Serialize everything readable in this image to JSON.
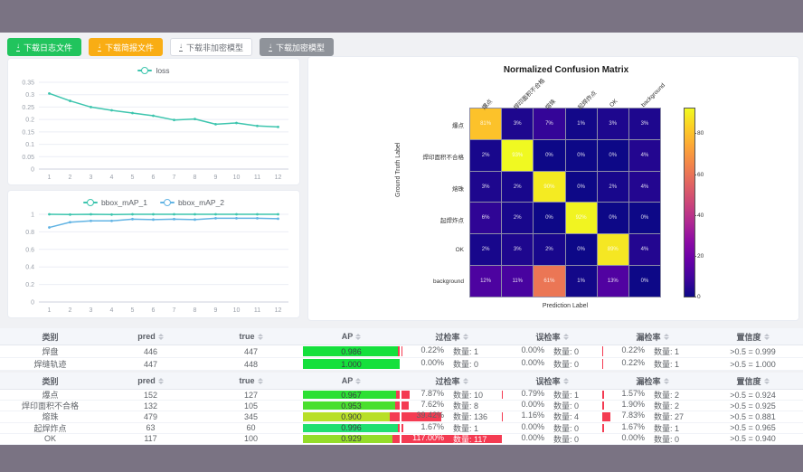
{
  "colors": {
    "frame": "#7a7383",
    "content_bg": "#f0f1f4",
    "teal_line": "#3dc5ae",
    "blue_line": "#62b4e4",
    "ap_red": "#f43b52",
    "rate_red": "#f43b52"
  },
  "toolbar": {
    "buttons": [
      {
        "id": "download-log-file",
        "label": "下载日志文件",
        "style": "green",
        "icon": "download-icon"
      },
      {
        "id": "download-report-file",
        "label": "下载简报文件",
        "style": "orange",
        "icon": "download-icon"
      },
      {
        "id": "download-plain-model",
        "label": "下载非加密模型",
        "style": "plain",
        "icon": "download-icon"
      },
      {
        "id": "download-encrypted-model",
        "label": "下载加密模型",
        "style": "gray",
        "icon": "download-icon"
      }
    ]
  },
  "chart_data": [
    {
      "type": "line",
      "title": "",
      "x": [
        1,
        2,
        3,
        4,
        5,
        6,
        7,
        8,
        9,
        10,
        11,
        12
      ],
      "series": [
        {
          "name": "loss",
          "color": "#3dc5ae",
          "values": [
            0.305,
            0.275,
            0.25,
            0.237,
            0.226,
            0.215,
            0.198,
            0.202,
            0.181,
            0.186,
            0.174,
            0.17
          ]
        }
      ],
      "ylim": [
        0,
        0.35
      ],
      "yticks": [
        0,
        0.05,
        0.1,
        0.15,
        0.2,
        0.25,
        0.3,
        0.35
      ],
      "legend_position": "top",
      "grid": true
    },
    {
      "type": "line",
      "title": "",
      "x": [
        1,
        2,
        3,
        4,
        5,
        6,
        7,
        8,
        9,
        10,
        11,
        12
      ],
      "series": [
        {
          "name": "bbox_mAP_1",
          "color": "#3dc5ae",
          "values": [
            1,
            0.997,
            1,
            0.997,
            1,
            1,
            1,
            1,
            1,
            1,
            1,
            1
          ]
        },
        {
          "name": "bbox_mAP_2",
          "color": "#62b4e4",
          "values": [
            0.85,
            0.91,
            0.925,
            0.925,
            0.945,
            0.94,
            0.945,
            0.94,
            0.955,
            0.955,
            0.955,
            0.95
          ]
        }
      ],
      "ylim": [
        0,
        1
      ],
      "yticks": [
        0,
        0.2,
        0.4,
        0.6,
        0.8,
        1
      ],
      "legend_position": "top",
      "grid": true
    },
    {
      "type": "heatmap",
      "title": "Normalized Confusion Matrix",
      "xlabel": "Prediction Label",
      "ylabel": "Ground Truth Label",
      "labels": [
        "爆点",
        "焊印面积不合格",
        "熔珠",
        "起焊炸点",
        "OK",
        "background"
      ],
      "matrix_percent": [
        [
          81,
          3,
          7,
          1,
          3,
          3
        ],
        [
          2,
          93,
          0,
          0,
          0,
          4
        ],
        [
          3,
          2,
          90,
          0,
          2,
          4
        ],
        [
          6,
          2,
          0,
          92,
          0,
          0
        ],
        [
          2,
          3,
          2,
          0,
          89,
          4
        ],
        [
          12,
          11,
          61,
          1,
          13,
          0
        ]
      ],
      "vmax": 93,
      "colorbar_ticks": [
        0,
        20,
        40,
        60,
        80
      ],
      "colormap": "plasma"
    }
  ],
  "tables": [
    {
      "headers": [
        {
          "label": "类别",
          "sortable": false
        },
        {
          "label": "pred",
          "sortable": true
        },
        {
          "label": "true",
          "sortable": true
        },
        {
          "label": "AP",
          "sortable": true
        },
        {
          "label": "过检率",
          "sortable": true
        },
        {
          "label": "误检率",
          "sortable": true
        },
        {
          "label": "漏检率",
          "sortable": true
        },
        {
          "label": "置信度",
          "sortable": true
        }
      ],
      "rows": [
        {
          "name": "焊盘",
          "pred": "446",
          "true": "447",
          "ap_label": "0.986",
          "ap": 0.986,
          "ap_color": "#15e03c",
          "rates": [
            {
              "pct": "0.22%",
              "count": "数量: 1",
              "bar": 0.22
            },
            {
              "pct": "0.00%",
              "count": "数量: 0",
              "bar": 0
            },
            {
              "pct": "0.22%",
              "count": "数量: 1",
              "bar": 0.22
            }
          ],
          "conf": ">0.5 = 0.999"
        },
        {
          "name": "焊缝轨迹",
          "pred": "447",
          "true": "448",
          "ap_label": "1.000",
          "ap": 1.0,
          "ap_color": "#15e03c",
          "rates": [
            {
              "pct": "0.00%",
              "count": "数量: 0",
              "bar": 0
            },
            {
              "pct": "0.00%",
              "count": "数量: 0",
              "bar": 0
            },
            {
              "pct": "0.22%",
              "count": "数量: 1",
              "bar": 0.22
            }
          ],
          "conf": ">0.5 = 1.000"
        }
      ]
    },
    {
      "headers": [
        {
          "label": "类别",
          "sortable": false
        },
        {
          "label": "pred",
          "sortable": true
        },
        {
          "label": "true",
          "sortable": true
        },
        {
          "label": "AP",
          "sortable": true
        },
        {
          "label": "过检率",
          "sortable": true
        },
        {
          "label": "误检率",
          "sortable": true
        },
        {
          "label": "漏检率",
          "sortable": true
        },
        {
          "label": "置信度",
          "sortable": true
        }
      ],
      "rows": [
        {
          "name": "爆点",
          "pred": "152",
          "true": "127",
          "ap_label": "0.967",
          "ap": 0.967,
          "ap_color": "#2ce033",
          "rates": [
            {
              "pct": "7.87%",
              "count": "数量: 10",
              "bar": 7.87
            },
            {
              "pct": "0.79%",
              "count": "数量: 1",
              "bar": 0.79
            },
            {
              "pct": "1.57%",
              "count": "数量: 2",
              "bar": 1.57
            }
          ],
          "conf": ">0.5 = 0.924"
        },
        {
          "name": "焊印面积不合格",
          "pred": "132",
          "true": "105",
          "ap_label": "0.953",
          "ap": 0.953,
          "ap_color": "#49df2d",
          "rates": [
            {
              "pct": "7.62%",
              "count": "数量: 8",
              "bar": 7.62
            },
            {
              "pct": "0.00%",
              "count": "数量: 0",
              "bar": 0
            },
            {
              "pct": "1.90%",
              "count": "数量: 2",
              "bar": 1.9
            }
          ],
          "conf": ">0.5 = 0.925"
        },
        {
          "name": "熔珠",
          "pred": "479",
          "true": "345",
          "ap_label": "0.900",
          "ap": 0.9,
          "ap_color": "#b8df27",
          "rates": [
            {
              "pct": "39.42%",
              "count": "数量: 136",
              "bar": 39.42
            },
            {
              "pct": "1.16%",
              "count": "数量: 4",
              "bar": 1.16
            },
            {
              "pct": "7.83%",
              "count": "数量: 27",
              "bar": 7.83
            }
          ],
          "conf": ">0.5 = 0.881"
        },
        {
          "name": "起焊炸点",
          "pred": "63",
          "true": "60",
          "ap_label": "0.996",
          "ap": 0.996,
          "ap_color": "#1fdf70",
          "rates": [
            {
              "pct": "1.67%",
              "count": "数量: 1",
              "bar": 1.67
            },
            {
              "pct": "0.00%",
              "count": "数量: 0",
              "bar": 0
            },
            {
              "pct": "1.67%",
              "count": "数量: 1",
              "bar": 1.67
            }
          ],
          "conf": ">0.5 = 0.965"
        },
        {
          "name": "OK",
          "pred": "117",
          "true": "100",
          "ap_label": "0.929",
          "ap": 0.929,
          "ap_color": "#93dc29",
          "rates": [
            {
              "pct": "117.00%",
              "count": "数量: 117",
              "bar": 117
            },
            {
              "pct": "0.00%",
              "count": "数量: 0",
              "bar": 0
            },
            {
              "pct": "0.00%",
              "count": "数量: 0",
              "bar": 0
            }
          ],
          "conf": ">0.5 = 0.940"
        }
      ]
    }
  ]
}
